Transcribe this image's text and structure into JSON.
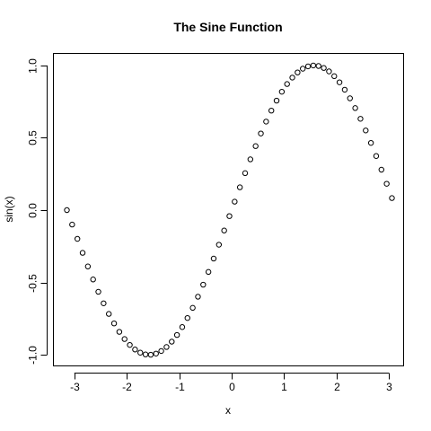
{
  "chart_data": {
    "type": "scatter",
    "title": "The Sine Function",
    "xlabel": "x",
    "ylabel": "sin(x)",
    "xlim": [
      -3.39,
      3.29
    ],
    "ylim": [
      -1.08,
      1.08
    ],
    "x_ticks": [
      -3,
      -2,
      -1,
      0,
      1,
      2,
      3
    ],
    "x_tick_labels": [
      "-3",
      "-2",
      "-1",
      "0",
      "1",
      "2",
      "3"
    ],
    "y_ticks": [
      -1.0,
      -0.5,
      0.0,
      0.5,
      1.0
    ],
    "y_tick_labels": [
      "-1.0",
      "-0.5",
      "0.0",
      "0.5",
      "1.0"
    ],
    "grid": false,
    "legend": "none",
    "marker": "open-circle",
    "x": [
      -3.1416,
      -3.0416,
      -2.9416,
      -2.8416,
      -2.7416,
      -2.6416,
      -2.5416,
      -2.4416,
      -2.3416,
      -2.2416,
      -2.1416,
      -2.0416,
      -1.9416,
      -1.8416,
      -1.7416,
      -1.6416,
      -1.5416,
      -1.4416,
      -1.3416,
      -1.2416,
      -1.1416,
      -1.0416,
      -0.9416,
      -0.8416,
      -0.7416,
      -0.6416,
      -0.5416,
      -0.4416,
      -0.3416,
      -0.2416,
      -0.1416,
      -0.0416,
      0.0584,
      0.1584,
      0.2584,
      0.3584,
      0.4584,
      0.5584,
      0.6584,
      0.7584,
      0.8584,
      0.9584,
      1.0584,
      1.1584,
      1.2584,
      1.3584,
      1.4584,
      1.5584,
      1.6584,
      1.7584,
      1.8584,
      1.9584,
      2.0584,
      2.1584,
      2.2584,
      2.3584,
      2.4584,
      2.5584,
      2.6584,
      2.7584,
      2.8584,
      2.9584,
      3.0584
    ],
    "y": [
      0.0,
      -0.0998,
      -0.1987,
      -0.2955,
      -0.3894,
      -0.4794,
      -0.5646,
      -0.6442,
      -0.7174,
      -0.7833,
      -0.8415,
      -0.8912,
      -0.932,
      -0.9636,
      -0.9854,
      -0.9975,
      -0.9996,
      -0.9917,
      -0.9738,
      -0.9463,
      -0.9093,
      -0.8632,
      -0.8085,
      -0.7457,
      -0.6755,
      -0.5985,
      -0.5155,
      -0.4274,
      -0.335,
      -0.2392,
      -0.1411,
      -0.0416,
      0.0584,
      0.1577,
      0.2555,
      0.3508,
      0.4425,
      0.5298,
      0.6119,
      0.6878,
      0.7568,
      0.8183,
      0.8716,
      0.9162,
      0.9516,
      0.9775,
      0.9937,
      0.9999,
      0.9962,
      0.9825,
      0.9589,
      0.9258,
      0.8835,
      0.8323,
      0.7728,
      0.7055,
      0.6313,
      0.5507,
      0.4646,
      0.3739,
      0.2794,
      0.1822,
      0.0831
    ]
  }
}
